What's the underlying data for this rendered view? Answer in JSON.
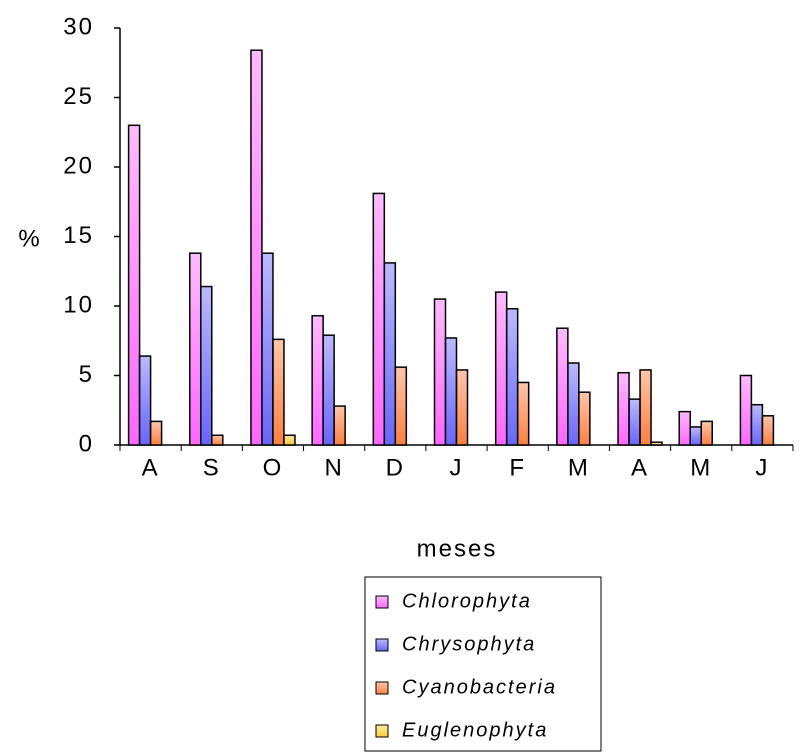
{
  "chart_data": {
    "type": "bar",
    "y_label": "%",
    "x_label": "meses",
    "categories": [
      "A",
      "S",
      "O",
      "N",
      "D",
      "J",
      "F",
      "M",
      "A",
      "M",
      "J"
    ],
    "series": [
      {
        "name": "Chlorophyta",
        "color": "#ff66ff",
        "values": [
          23,
          13.8,
          28.4,
          9.3,
          18.1,
          10.5,
          11,
          8.4,
          5.2,
          2.4,
          5
        ]
      },
      {
        "name": "Chrysophyta",
        "color": "#6666ff",
        "values": [
          6.4,
          11.4,
          13.8,
          7.9,
          13.1,
          7.7,
          9.8,
          5.9,
          3.3,
          1.3,
          2.9
        ]
      },
      {
        "name": "Cyanobacteria",
        "color": "#ff7f3f",
        "values": [
          1.7,
          0.7,
          7.6,
          2.8,
          5.6,
          5.4,
          4.5,
          3.8,
          5.4,
          1.7,
          2.1
        ]
      },
      {
        "name": "Euglenophyta",
        "color": "#ffcc33",
        "values": [
          0,
          0,
          0.7,
          0,
          0,
          0,
          0,
          0,
          0.2,
          0,
          0
        ]
      }
    ],
    "ylim": [
      0,
      30
    ],
    "yticks": [
      0,
      5,
      10,
      15,
      20,
      25,
      30
    ]
  }
}
